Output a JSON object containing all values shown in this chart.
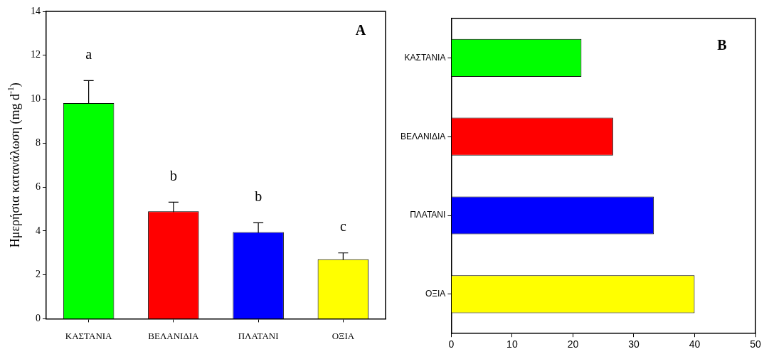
{
  "chart_data": [
    {
      "type": "bar",
      "title": "A",
      "ylabel": "Ημερήσια κατανάλωση (mg d$^{-1}$)",
      "categories": [
        "ΚΑΣΤΑΝΙΑ",
        "ΒΕΛΑΝΙΔΙΑ",
        "ΠΛΑΤΑΝΙ",
        "ΟΞΙΑ"
      ],
      "values": [
        9.82,
        4.89,
        3.95,
        2.71
      ],
      "errors": [
        1.03,
        0.42,
        0.42,
        0.29
      ],
      "colors": [
        "#00ff00",
        "#ff0000",
        "#0000ff",
        "#ffff00"
      ],
      "ylim": [
        0,
        14
      ],
      "yticks": [
        0,
        2,
        4,
        6,
        8,
        10,
        12,
        14
      ],
      "grid": false,
      "legend": false,
      "annotations": [
        "a",
        "b",
        "b",
        "c"
      ]
    },
    {
      "type": "bar",
      "orientation": "horizontal",
      "title": "B",
      "categories": [
        "ΚΑΣΤΑΝΙΑ",
        "ΒΕΛΑΝΙΔΙΑ",
        "ΠΛΑΤΑΝΙ",
        "ΟΞΙΑ"
      ],
      "values": [
        21.4,
        26.6,
        33.3,
        40.0
      ],
      "colors": [
        "#00ff00",
        "#ff0000",
        "#0000ff",
        "#ffff00"
      ],
      "xlim": [
        0,
        50
      ],
      "xticks": [
        0,
        10,
        20,
        30,
        40,
        50
      ],
      "grid": false,
      "legend": false
    }
  ]
}
